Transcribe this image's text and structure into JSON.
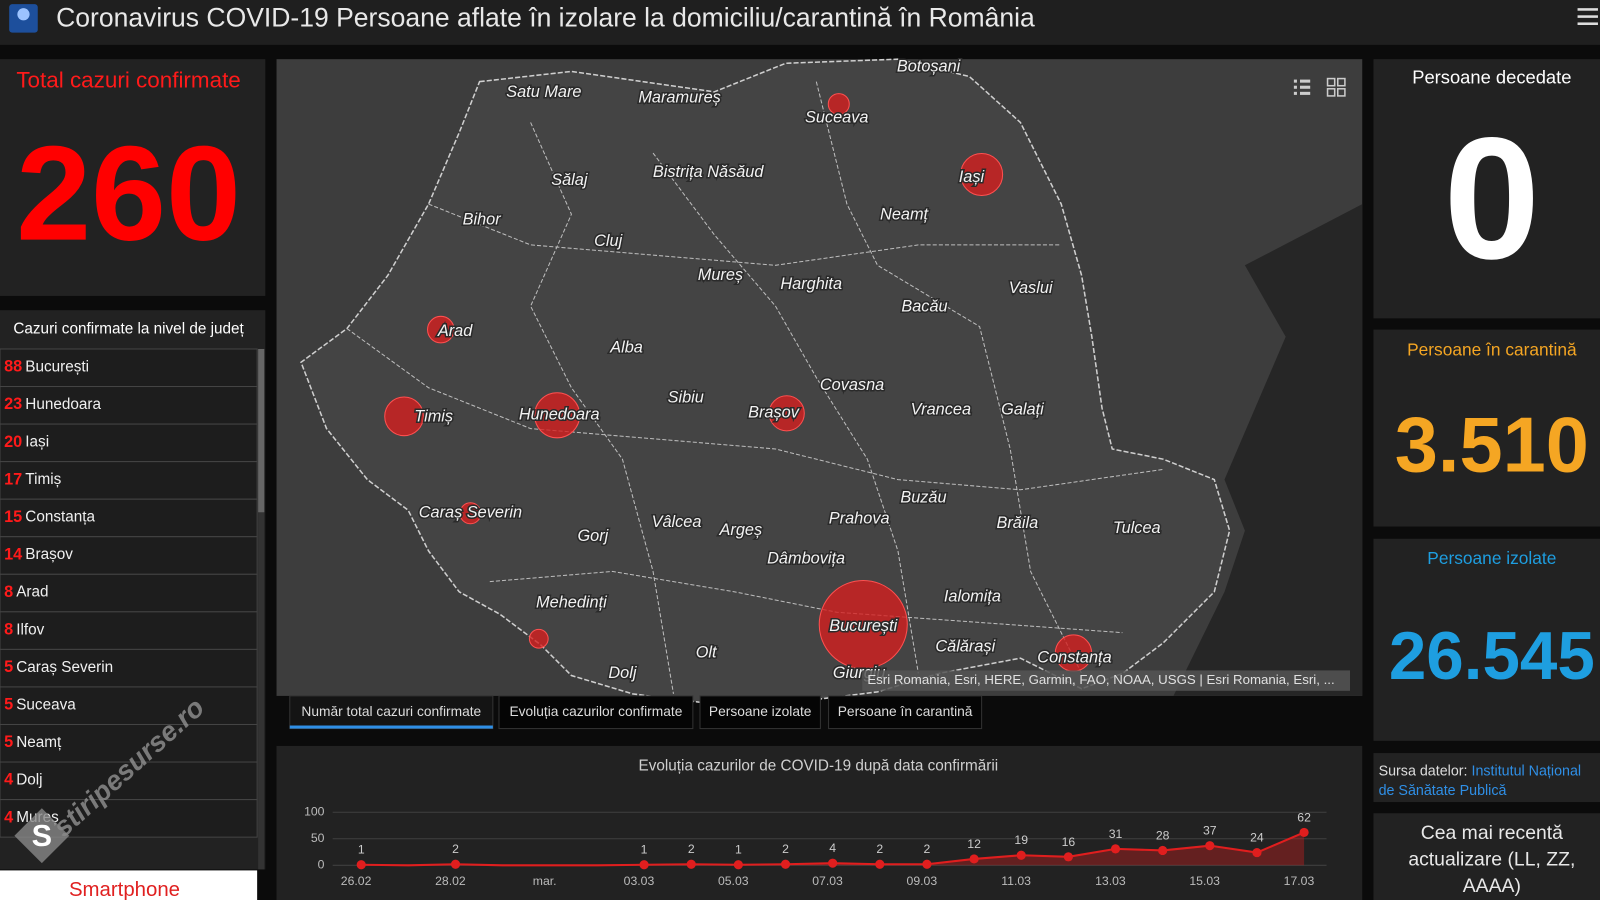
{
  "header": {
    "title": "Coronavirus COVID-19 Persoane aflate în izolare la domiciliu/carantină în România"
  },
  "total": {
    "title": "Total cazuri confirmate",
    "value": "260"
  },
  "counties": {
    "title": "Cazuri confirmate la nivel de județ",
    "items": [
      {
        "count": 88,
        "name": "București"
      },
      {
        "count": 23,
        "name": "Hunedoara"
      },
      {
        "count": 20,
        "name": "Iași"
      },
      {
        "count": 17,
        "name": "Timiș"
      },
      {
        "count": 15,
        "name": "Constanța"
      },
      {
        "count": 14,
        "name": "Brașov"
      },
      {
        "count": 8,
        "name": "Arad"
      },
      {
        "count": 8,
        "name": "Ilfov"
      },
      {
        "count": 5,
        "name": "Caraș Severin"
      },
      {
        "count": 5,
        "name": "Suceava"
      },
      {
        "count": 5,
        "name": "Neamț"
      },
      {
        "count": 4,
        "name": "Dolj"
      },
      {
        "count": 4,
        "name": "Mureș"
      }
    ],
    "button": "Smartphone"
  },
  "watermark": "stiripesurse.ro",
  "map": {
    "labels": [
      "Botoșani",
      "Satu Mare",
      "Maramureș",
      "Suceava",
      "Sălaj",
      "Bistrița Năsăud",
      "Iași",
      "Bihor",
      "Neamț",
      "Cluj",
      "Mureș",
      "Harghita",
      "Vaslui",
      "Arad",
      "Bacău",
      "Alba",
      "Covasna",
      "Sibiu",
      "Brașov",
      "Vrancea",
      "Galați",
      "Timiș",
      "Hunedoara",
      "Buzău",
      "Caraș Severin",
      "Vâlcea",
      "Prahova",
      "Brăila",
      "Tulcea",
      "Gorj",
      "Argeș",
      "Dâmbovița",
      "Ialomița",
      "Mehedinți",
      "București",
      "Călărași",
      "Olt",
      "Constanța",
      "Dolj",
      "Giurgiu"
    ],
    "attribution": "Esri Romania, Esri, HERE, Garmin, FAO, NOAA, USGS | Esri Romania, Esri, ..."
  },
  "tabs": [
    "Număr total cazuri confirmate",
    "Evoluția cazurilor confirmate",
    "Persoane izolate",
    "Persoane în carantină"
  ],
  "chart_data": {
    "type": "line",
    "title": "Evoluția cazurilor de COVID-19 după data confirmării",
    "categories": [
      "26.02",
      null,
      "28.02",
      null,
      "mar.",
      null,
      "03.03",
      null,
      "05.03",
      null,
      "07.03",
      null,
      "09.03",
      null,
      "11.03",
      null,
      "13.03",
      null,
      "15.03",
      null,
      "17.03"
    ],
    "values": [
      1,
      0,
      2,
      0,
      0,
      0,
      1,
      2,
      1,
      2,
      4,
      2,
      2,
      12,
      19,
      16,
      31,
      28,
      37,
      24,
      62
    ],
    "color": "#e01e1e",
    "ylim": [
      0,
      100
    ],
    "yticks": [
      0,
      50,
      100
    ],
    "grid": true
  },
  "deaths": {
    "title": "Persoane decedate",
    "value": "0"
  },
  "quarantine": {
    "title": "Persoane în carantină",
    "value": "3.510"
  },
  "isolated": {
    "title": "Persoane izolate",
    "value": "26.545"
  },
  "source": {
    "label": "Sursa datelor:",
    "link": "Institutul Național de Sănătate Publică"
  },
  "update": {
    "title": "Cea mai recentă actualizare (LL, ZZ, AAAA)"
  }
}
